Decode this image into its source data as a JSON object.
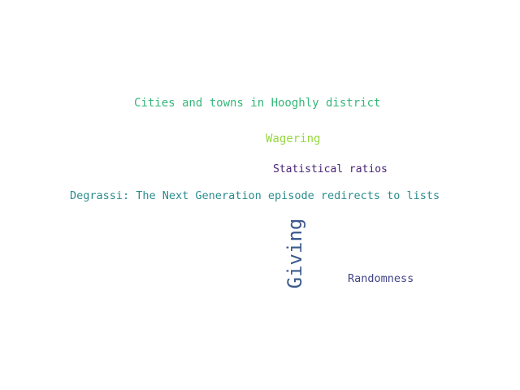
{
  "words": [
    {
      "text": "Cities and towns in Hooghly district",
      "color": "#35b779"
    },
    {
      "text": "Wagering",
      "color": "#95d840"
    },
    {
      "text": "Statistical ratios",
      "color": "#482475"
    },
    {
      "text": "Degrassi: The Next Generation episode redirects to lists",
      "color": "#2a8c8e"
    },
    {
      "text": "Giving",
      "color": "#3b5a8c"
    },
    {
      "text": "Randomness",
      "color": "#414487"
    }
  ]
}
